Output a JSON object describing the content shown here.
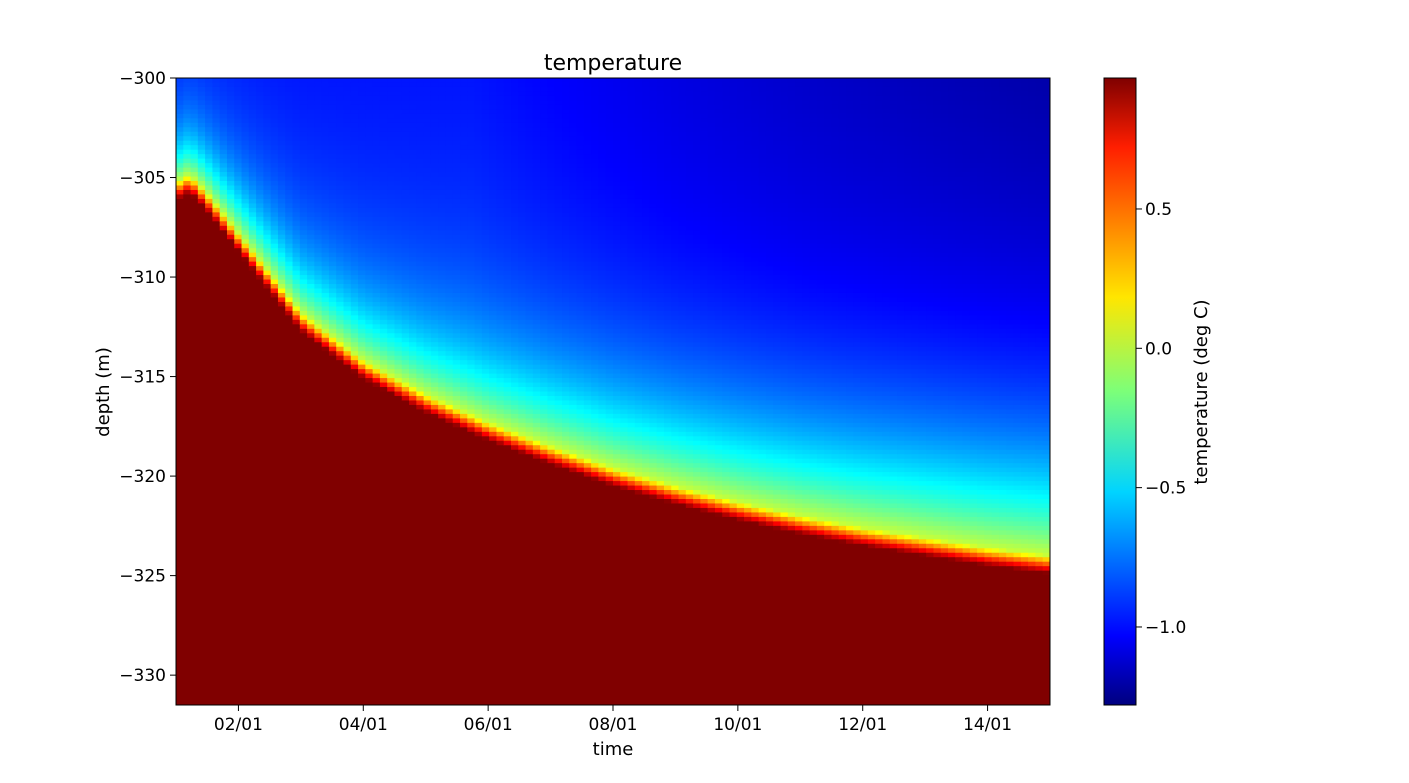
{
  "chart_data": {
    "type": "heatmap",
    "title": "temperature",
    "xlabel": "time",
    "ylabel": "depth (m)",
    "colorbar_label": "temperature (deg C)",
    "colormap": "jet",
    "x_range": [
      "01/01 00:00",
      "15/01 00:00"
    ],
    "x_ticks": [
      "02/01",
      "04/01",
      "06/01",
      "08/01",
      "10/01",
      "12/01",
      "14/01"
    ],
    "ylim": [
      -331.5,
      -300
    ],
    "y_ticks": [
      -300,
      -305,
      -310,
      -315,
      -320,
      -325,
      -330
    ],
    "y_tick_labels": [
      "−300",
      "−305",
      "−310",
      "−315",
      "−320",
      "−325",
      "−330"
    ],
    "clim": [
      -1.28,
      0.97
    ],
    "colorbar_ticks": [
      0.5,
      0.0,
      -0.5,
      -1.0
    ],
    "colorbar_tick_labels": [
      "0.5",
      "0.0",
      "−0.5",
      "−1.0"
    ],
    "freezing_front": {
      "description_values": "depth of the 0 deg C isotherm versus time (days since start)",
      "days": [
        0.0,
        0.15,
        0.3,
        0.5,
        1,
        2,
        3,
        4,
        5,
        6,
        7,
        8,
        9,
        10,
        11,
        12,
        13,
        14
      ],
      "depth": [
        -305.3,
        -304.9,
        -305.1,
        -305.8,
        -307.8,
        -311.8,
        -314.2,
        -315.9,
        -317.3,
        -318.5,
        -319.6,
        -320.5,
        -321.3,
        -322.0,
        -322.6,
        -323.1,
        -323.6,
        -324.0
      ]
    },
    "surface_temperature": {
      "days": [
        0,
        1,
        2,
        4,
        6,
        8,
        10,
        12,
        14
      ],
      "value": [
        -0.75,
        -0.78,
        -0.85,
        -0.97,
        -1.05,
        -1.12,
        -1.18,
        -1.23,
        -1.28
      ]
    }
  }
}
